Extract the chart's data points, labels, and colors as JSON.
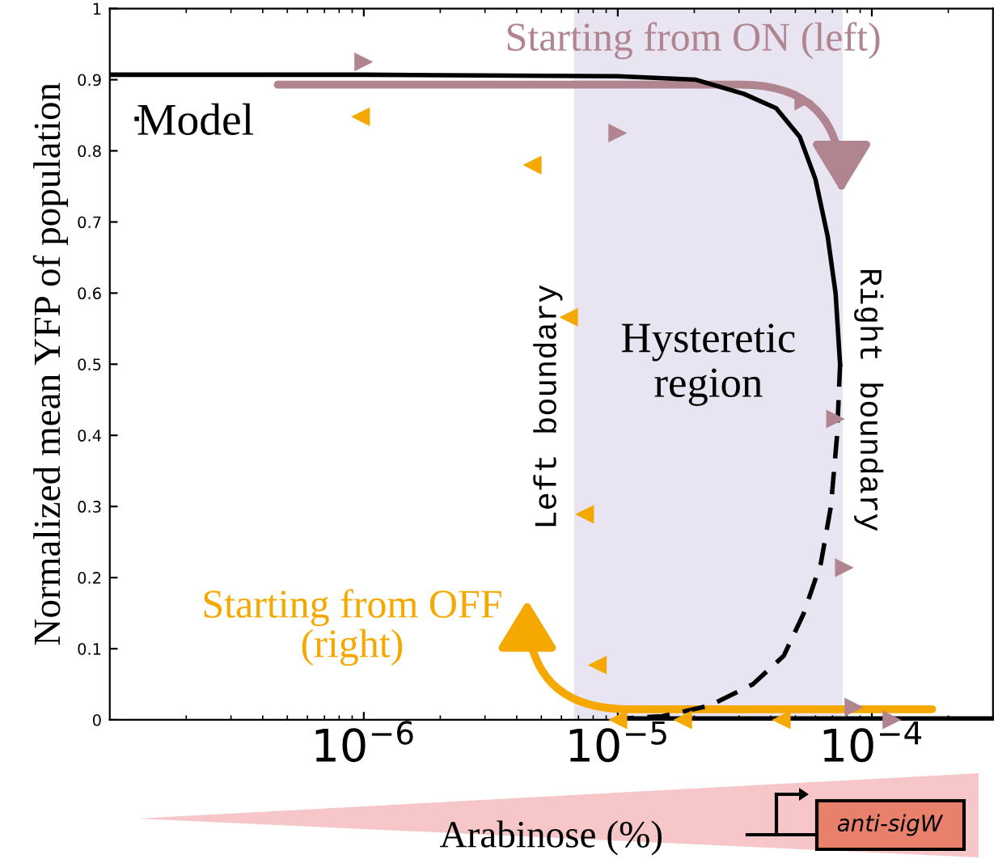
{
  "chart_data": {
    "type": "line",
    "xlabel": "Arabinose (%)",
    "ylabel": "Normalized mean YFP of population",
    "log": "x",
    "xlim": [
      1e-07,
      0.0003
    ],
    "ylim": [
      0,
      1
    ],
    "xticks": [
      {
        "value": 1e-06,
        "label": "10$^{−6}$"
      },
      {
        "value": 1e-05,
        "label": "10$^{−5}$"
      },
      {
        "value": 0.0001,
        "label": "10$^{−4}$"
      }
    ],
    "yticks": [
      0,
      0.1,
      0.2,
      0.3,
      0.4,
      0.5,
      0.6,
      0.7,
      0.8,
      0.9,
      1
    ],
    "grid": false,
    "legend": "top left",
    "bands": [
      {
        "axis": "x",
        "from": 6.8e-06,
        "to": 7.6e-05,
        "label": "Hysteretic\nregion",
        "color": "#e8e4f2"
      }
    ],
    "ref_lines": [
      {
        "axis": "x",
        "value": 6.8e-06,
        "label": "Left boundary",
        "color": "#e8e4f2"
      },
      {
        "axis": "x",
        "value": 7.6e-05,
        "label": "Right boundary",
        "color": "#e8e4f2"
      }
    ],
    "series": [
      {
        "name": "Model",
        "color": "#000000",
        "line_style": "solid",
        "marker": "none",
        "x": [
          1e-07,
          1e-06,
          1e-05,
          2.03e-05,
          3.14e-05,
          4.2e-05,
          5.2e-05,
          6e-05,
          6.7e-05,
          7.2e-05,
          7.5e-05
        ],
        "values": [
          0.907,
          0.907,
          0.905,
          0.9,
          0.88,
          0.86,
          0.82,
          0.76,
          0.68,
          0.6,
          0.5
        ]
      },
      {
        "color": "#000000",
        "line_style": "dashed",
        "marker": "none",
        "x": [
          7.5e-05,
          7.3e-05,
          6.9e-05,
          6.3e-05,
          5.4e-05,
          4.5e-05,
          3.4e-05,
          2.3e-05,
          1.5e-05,
          1.06e-05
        ],
        "values": [
          0.5,
          0.4,
          0.3,
          0.22,
          0.15,
          0.09,
          0.05,
          0.02,
          0.005,
          0.002
        ]
      },
      {
        "color": "#000000",
        "line_style": "solid",
        "marker": "none",
        "x": [
          1.06e-05,
          0.0003
        ],
        "values": [
          0.002,
          0.002
        ]
      },
      {
        "type": "scatter",
        "color": "#b08590",
        "marker": "triangle-right",
        "x": [
          1e-06,
          1e-05,
          5.4e-05,
          7.2e-05,
          7.8e-05,
          8.5e-05,
          0.00012
        ],
        "values": [
          0.925,
          0.825,
          0.87,
          0.423,
          0.214,
          0.018,
          0.0
        ]
      },
      {
        "type": "scatter",
        "color": "#f5a800",
        "marker": "triangle-left",
        "x": [
          9.7e-07,
          4.6e-06,
          6.4e-06,
          7.4e-06,
          8.3e-06,
          1e-05,
          1.8e-05,
          4.4e-05
        ],
        "values": [
          0.848,
          0.78,
          0.566,
          0.289,
          0.077,
          0.0,
          0.0,
          0.0
        ]
      }
    ],
    "annotations": [
      "anti-sigW",
      "Starting from ON (left)",
      "Starting from OFF\n(right)"
    ]
  }
}
